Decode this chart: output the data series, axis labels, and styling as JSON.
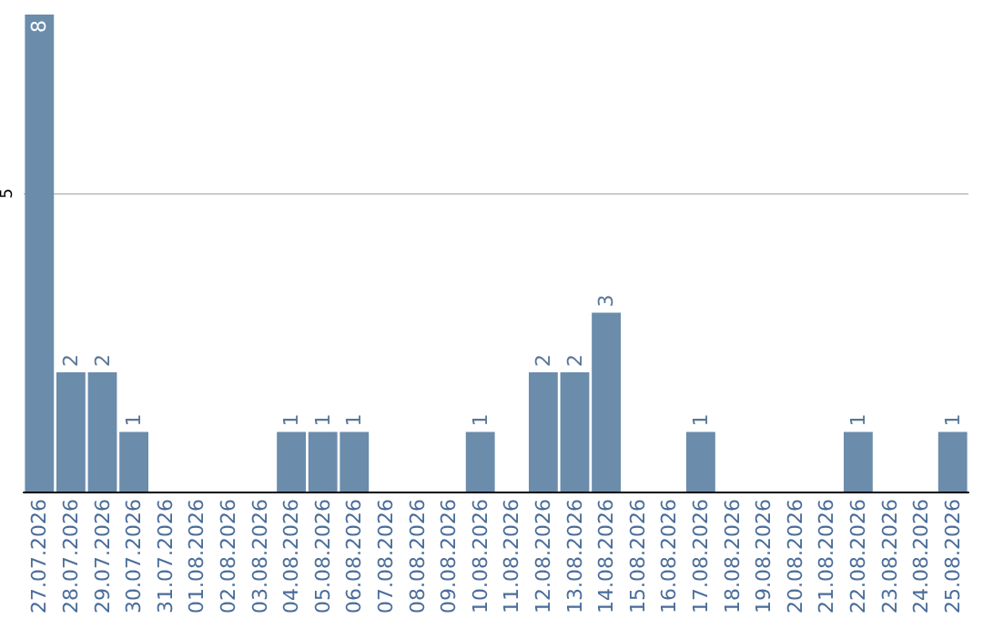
{
  "chart_data": {
    "type": "bar",
    "categories": [
      "27.07.2026",
      "28.07.2026",
      "29.07.2026",
      "30.07.2026",
      "31.07.2026",
      "01.08.2026",
      "02.08.2026",
      "03.08.2026",
      "04.08.2026",
      "05.08.2026",
      "06.08.2026",
      "07.08.2026",
      "08.08.2026",
      "09.08.2026",
      "10.08.2026",
      "11.08.2026",
      "12.08.2026",
      "13.08.2026",
      "14.08.2026",
      "15.08.2026",
      "16.08.2026",
      "17.08.2026",
      "18.08.2026",
      "19.08.2026",
      "20.08.2026",
      "21.08.2026",
      "22.08.2026",
      "23.08.2026",
      "24.08.2026",
      "25.08.2026"
    ],
    "values": [
      8,
      2,
      2,
      1,
      0,
      0,
      0,
      0,
      1,
      1,
      1,
      0,
      0,
      0,
      1,
      0,
      2,
      2,
      3,
      0,
      0,
      1,
      0,
      0,
      0,
      0,
      1,
      0,
      0,
      1
    ],
    "value_labels": [
      "8",
      "2",
      "2",
      "1",
      null,
      null,
      null,
      null,
      "1",
      "1",
      "1",
      null,
      null,
      null,
      "1",
      null,
      "2",
      "2",
      "3",
      null,
      null,
      "1",
      null,
      null,
      null,
      null,
      "1",
      null,
      null,
      "1"
    ],
    "color": "#6b8cab",
    "ylim": [
      0,
      8
    ],
    "yticks": [
      5
    ],
    "grid": "y"
  }
}
